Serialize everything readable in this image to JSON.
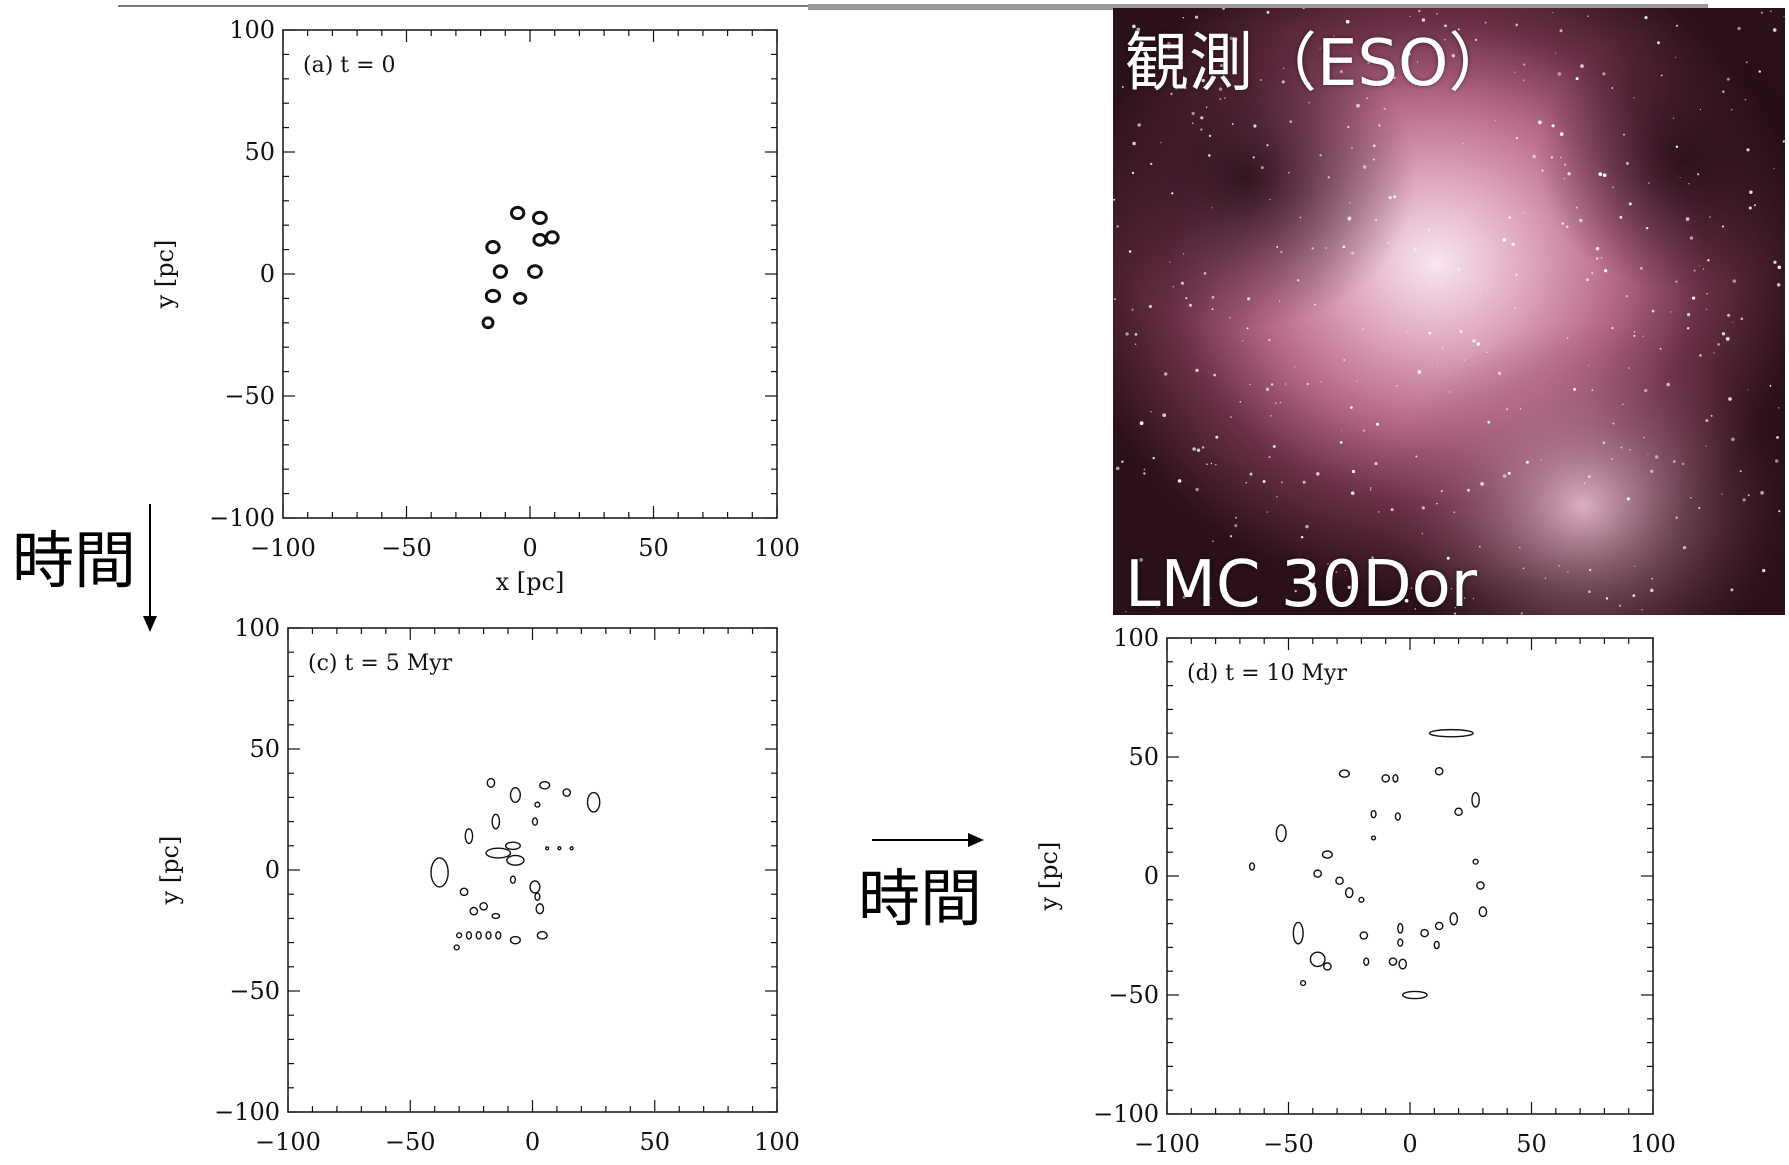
{
  "photo": {
    "title": "観測（ESO）",
    "caption": "LMC 30Dor"
  },
  "time_label_vertical": "時間",
  "time_label_horizontal": "時間",
  "chart_data": [
    {
      "type": "contour",
      "panel_label": "(a) t = 0",
      "xlabel": "x [pc]",
      "ylabel": "y [pc]",
      "xlim": [
        -100,
        100
      ],
      "ylim": [
        -100,
        100
      ],
      "xticks": [
        "−100",
        "−50",
        "0",
        "50",
        "100"
      ],
      "yticks": [
        "100",
        "50",
        "0",
        "−50",
        "−100"
      ],
      "contours": [
        {
          "x": -5,
          "y": 25,
          "rx": 2.5,
          "ry": 2.3
        },
        {
          "x": 4,
          "y": 23,
          "rx": 2.6,
          "ry": 2.3
        },
        {
          "x": -15,
          "y": 11,
          "rx": 2.5,
          "ry": 2.3
        },
        {
          "x": 4,
          "y": 14,
          "rx": 2.4,
          "ry": 2.2
        },
        {
          "x": 9,
          "y": 15,
          "rx": 2.4,
          "ry": 2.3
        },
        {
          "x": -12,
          "y": 1,
          "rx": 2.5,
          "ry": 2.4
        },
        {
          "x": 2,
          "y": 1,
          "rx": 2.6,
          "ry": 2.4
        },
        {
          "x": -15,
          "y": -9,
          "rx": 2.7,
          "ry": 2.3
        },
        {
          "x": -4,
          "y": -10,
          "rx": 2.3,
          "ry": 2.0
        },
        {
          "x": -17,
          "y": -20,
          "rx": 2.0,
          "ry": 2.0
        }
      ]
    },
    {
      "type": "contour",
      "panel_label": "(c) t = 5 Myr",
      "xlabel": "",
      "ylabel": "y [pc]",
      "xlim": [
        -100,
        100
      ],
      "ylim": [
        -100,
        100
      ],
      "xticks": [
        "−100",
        "−50",
        "0",
        "50",
        "100"
      ],
      "yticks": [
        "100",
        "50",
        "0",
        "−50",
        "−100"
      ],
      "contours": [
        {
          "x": -38,
          "y": -1,
          "rx": 3.5,
          "ry": 6
        },
        {
          "x": -17,
          "y": 36,
          "rx": 1.5,
          "ry": 1.8
        },
        {
          "x": -7,
          "y": 31,
          "rx": 2.0,
          "ry": 3.0
        },
        {
          "x": 5,
          "y": 35,
          "rx": 2.0,
          "ry": 1.5
        },
        {
          "x": 14,
          "y": 32,
          "rx": 1.5,
          "ry": 1.5
        },
        {
          "x": 25,
          "y": 28,
          "rx": 2.5,
          "ry": 4.0
        },
        {
          "x": -15,
          "y": 20,
          "rx": 1.5,
          "ry": 3.0
        },
        {
          "x": -26,
          "y": 14,
          "rx": 1.5,
          "ry": 3.0
        },
        {
          "x": -14,
          "y": 7,
          "rx": 5.0,
          "ry": 2.0
        },
        {
          "x": -8,
          "y": 10,
          "rx": 3.0,
          "ry": 1.5
        },
        {
          "x": -7,
          "y": 4,
          "rx": 3.5,
          "ry": 2.0
        },
        {
          "x": 1,
          "y": 20,
          "rx": 1.0,
          "ry": 1.5
        },
        {
          "x": 2,
          "y": 27,
          "rx": 1.0,
          "ry": 1.0
        },
        {
          "x": -8,
          "y": -4,
          "rx": 1.0,
          "ry": 1.5
        },
        {
          "x": 1,
          "y": -7,
          "rx": 2.0,
          "ry": 2.5
        },
        {
          "x": -28,
          "y": -9,
          "rx": 1.5,
          "ry": 1.5
        },
        {
          "x": -20,
          "y": -15,
          "rx": 1.5,
          "ry": 1.5
        },
        {
          "x": -24,
          "y": -17,
          "rx": 1.5,
          "ry": 1.5
        },
        {
          "x": -15,
          "y": -19,
          "rx": 1.5,
          "ry": 1.0
        },
        {
          "x": 3,
          "y": -16,
          "rx": 1.5,
          "ry": 2.0
        },
        {
          "x": 2,
          "y": -11,
          "rx": 1.0,
          "ry": 1.5
        },
        {
          "x": -30,
          "y": -27,
          "rx": 1.0,
          "ry": 1.0
        },
        {
          "x": -26,
          "y": -27,
          "rx": 1.0,
          "ry": 1.5
        },
        {
          "x": -22,
          "y": -27,
          "rx": 1.0,
          "ry": 1.5
        },
        {
          "x": -18,
          "y": -27,
          "rx": 1.0,
          "ry": 1.5
        },
        {
          "x": -14,
          "y": -27,
          "rx": 1.0,
          "ry": 1.5
        },
        {
          "x": -7,
          "y": -29,
          "rx": 2.0,
          "ry": 1.5
        },
        {
          "x": 4,
          "y": -27,
          "rx": 2.0,
          "ry": 1.5
        },
        {
          "x": -31,
          "y": -32,
          "rx": 1.0,
          "ry": 1.0
        },
        {
          "x": 6,
          "y": 9,
          "rx": 0.6,
          "ry": 0.6
        },
        {
          "x": 11,
          "y": 9,
          "rx": 0.6,
          "ry": 0.6
        },
        {
          "x": 16,
          "y": 9,
          "rx": 0.6,
          "ry": 0.6
        }
      ]
    },
    {
      "type": "contour",
      "panel_label": "(d) t = 10 Myr",
      "xlabel": "",
      "ylabel": "y [pc]",
      "xlim": [
        -100,
        100
      ],
      "ylim": [
        -100,
        100
      ],
      "xticks": [
        "−100",
        "−50",
        "0",
        "50",
        "100"
      ],
      "yticks": [
        "100",
        "50",
        "0",
        "−50",
        "−100"
      ],
      "contours": [
        {
          "x": 17,
          "y": 60,
          "rx": 9.0,
          "ry": 1.5
        },
        {
          "x": -27,
          "y": 43,
          "rx": 2.0,
          "ry": 1.5
        },
        {
          "x": -10,
          "y": 41,
          "rx": 1.5,
          "ry": 1.5
        },
        {
          "x": -6,
          "y": 41,
          "rx": 1.0,
          "ry": 1.5
        },
        {
          "x": 12,
          "y": 44,
          "rx": 1.5,
          "ry": 1.5
        },
        {
          "x": 27,
          "y": 32,
          "rx": 1.5,
          "ry": 3.0
        },
        {
          "x": 20,
          "y": 27,
          "rx": 1.5,
          "ry": 1.5
        },
        {
          "x": -15,
          "y": 26,
          "rx": 1.0,
          "ry": 1.5
        },
        {
          "x": -5,
          "y": 25,
          "rx": 1.0,
          "ry": 1.5
        },
        {
          "x": -53,
          "y": 18,
          "rx": 2.0,
          "ry": 3.5
        },
        {
          "x": -34,
          "y": 9,
          "rx": 2.0,
          "ry": 1.5
        },
        {
          "x": -15,
          "y": 16,
          "rx": 0.8,
          "ry": 0.8
        },
        {
          "x": -65,
          "y": 4,
          "rx": 1.0,
          "ry": 1.5
        },
        {
          "x": -38,
          "y": 1,
          "rx": 1.5,
          "ry": 1.5
        },
        {
          "x": -29,
          "y": -2,
          "rx": 1.5,
          "ry": 1.5
        },
        {
          "x": -25,
          "y": -7,
          "rx": 1.5,
          "ry": 2.0
        },
        {
          "x": -20,
          "y": -10,
          "rx": 1.0,
          "ry": 1.0
        },
        {
          "x": 27,
          "y": 6,
          "rx": 1.0,
          "ry": 1.0
        },
        {
          "x": 29,
          "y": -4,
          "rx": 1.5,
          "ry": 1.5
        },
        {
          "x": 30,
          "y": -15,
          "rx": 1.5,
          "ry": 2.0
        },
        {
          "x": 18,
          "y": -18,
          "rx": 1.5,
          "ry": 2.5
        },
        {
          "x": 12,
          "y": -21,
          "rx": 1.5,
          "ry": 1.5
        },
        {
          "x": 6,
          "y": -24,
          "rx": 1.5,
          "ry": 1.5
        },
        {
          "x": -46,
          "y": -24,
          "rx": 2.0,
          "ry": 4.5
        },
        {
          "x": -19,
          "y": -25,
          "rx": 1.5,
          "ry": 1.5
        },
        {
          "x": -4,
          "y": -22,
          "rx": 1.0,
          "ry": 2.0
        },
        {
          "x": -38,
          "y": -35,
          "rx": 3.0,
          "ry": 3.0
        },
        {
          "x": -34,
          "y": -38,
          "rx": 1.5,
          "ry": 1.5
        },
        {
          "x": -18,
          "y": -36,
          "rx": 1.0,
          "ry": 1.5
        },
        {
          "x": -7,
          "y": -36,
          "rx": 1.5,
          "ry": 1.5
        },
        {
          "x": -3,
          "y": -37,
          "rx": 1.5,
          "ry": 2.0
        },
        {
          "x": 11,
          "y": -29,
          "rx": 1.0,
          "ry": 1.5
        },
        {
          "x": -44,
          "y": -45,
          "rx": 1.0,
          "ry": 1.0
        },
        {
          "x": 2,
          "y": -50,
          "rx": 5.0,
          "ry": 1.5
        },
        {
          "x": -4,
          "y": -28,
          "rx": 1.0,
          "ry": 1.5
        }
      ]
    }
  ]
}
